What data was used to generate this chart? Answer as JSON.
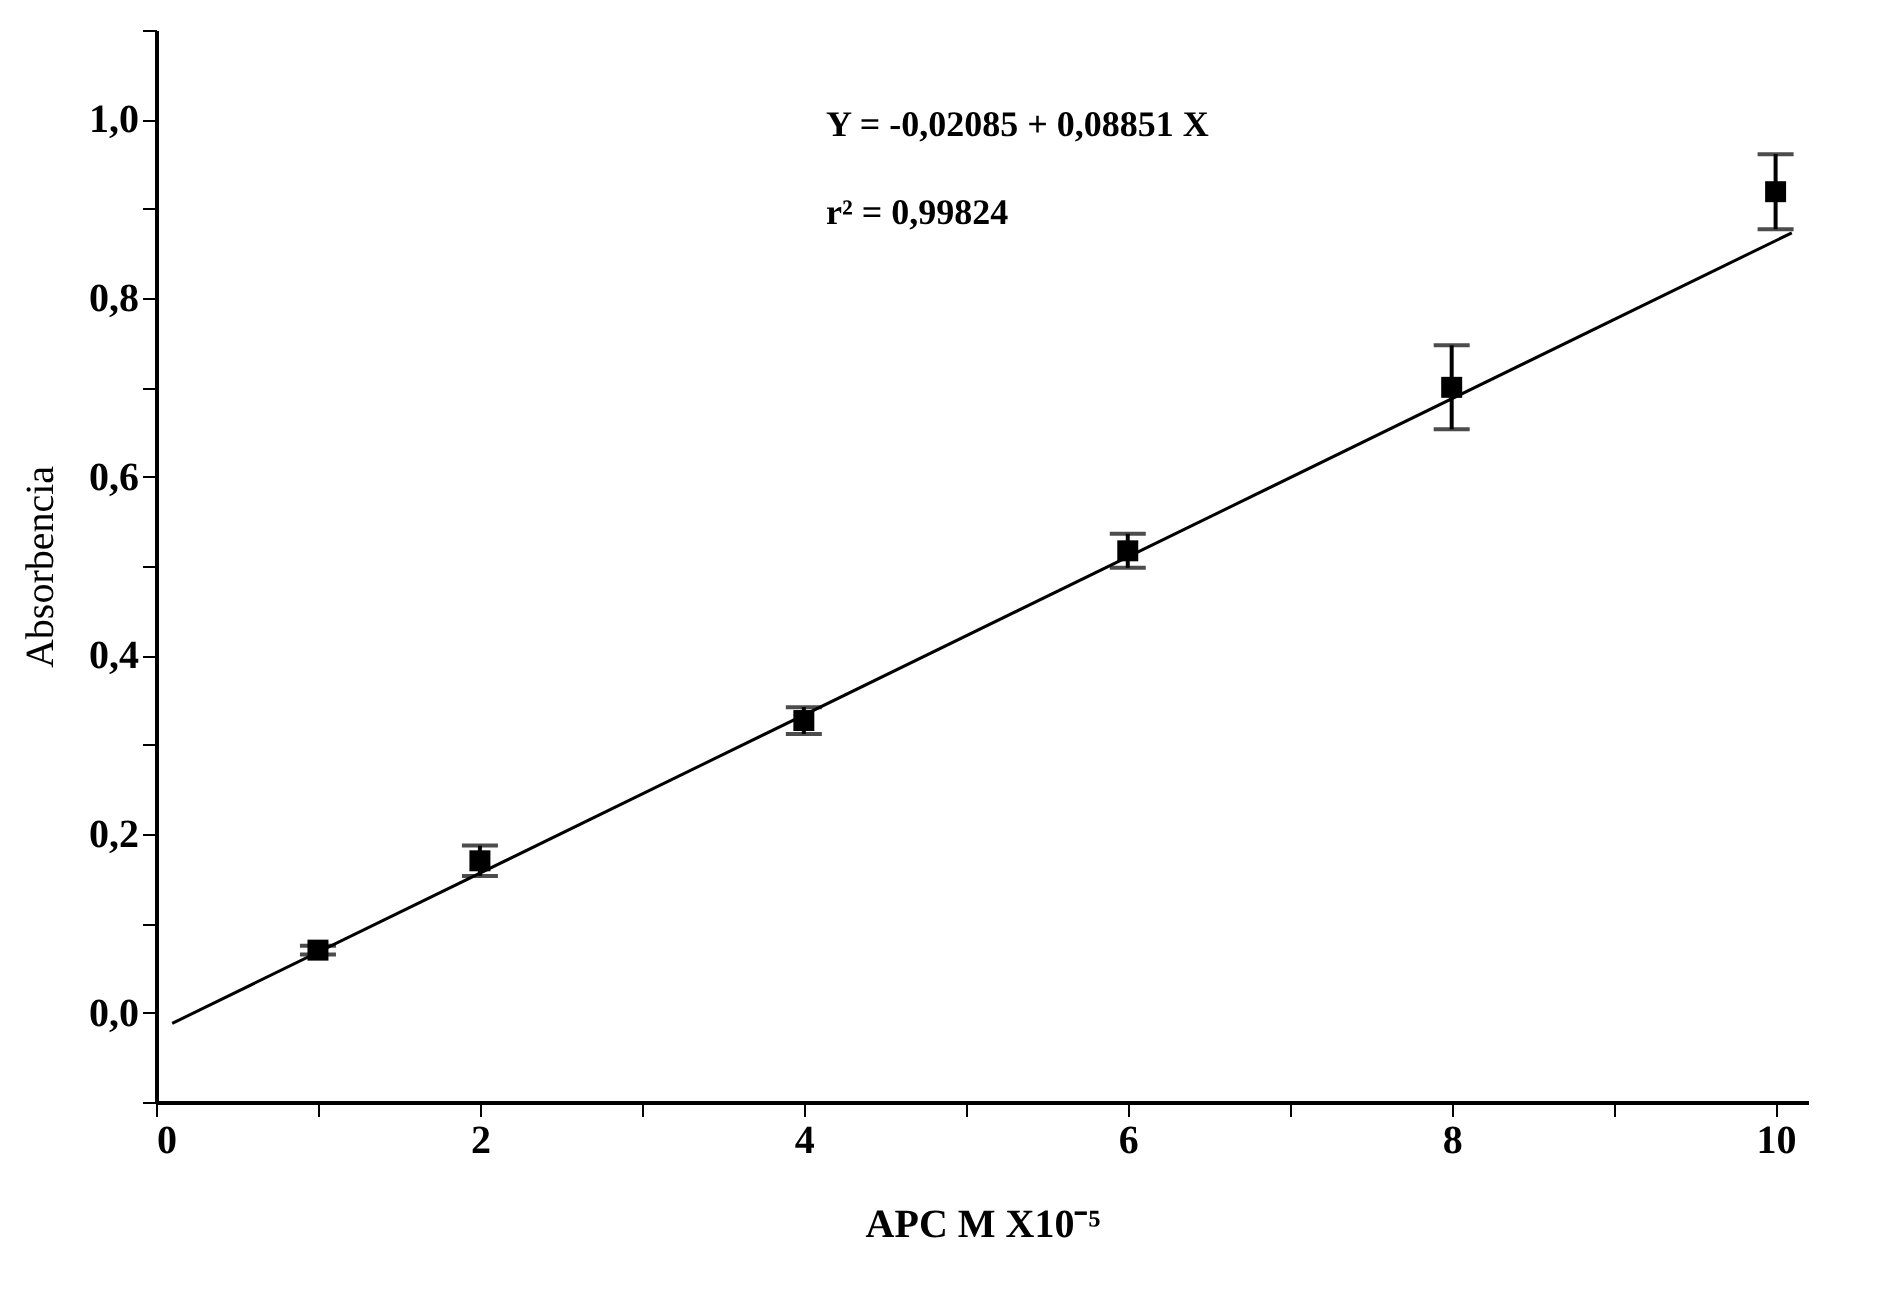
{
  "chart_data": {
    "type": "scatter",
    "xlabel": "APC M X10⁻⁵",
    "ylabel": "Absorbencia",
    "annotations": [
      "Y = -0,02085 + 0,08851 X",
      "r² = 0,99824"
    ],
    "x": [
      1,
      2,
      4,
      6,
      8,
      10
    ],
    "series": [
      {
        "color": "#000000",
        "marker": "square",
        "values": [
          0.07,
          0.17,
          0.327,
          0.517,
          0.7,
          0.919
        ],
        "errors": [
          0.005,
          0.017,
          0.015,
          0.019,
          0.047,
          0.042
        ]
      },
      {
        "type": "line",
        "color": "#000000",
        "line_style": "solid",
        "x": [
          0.1,
          10.1
        ],
        "values": [
          -0.012,
          0.873
        ]
      }
    ],
    "xlim": [
      0,
      10.2
    ],
    "xticks": [
      0,
      {
        "value": 1,
        "label": null
      },
      2,
      {
        "value": 3,
        "label": null
      },
      4,
      {
        "value": 5,
        "label": null
      },
      6,
      {
        "value": 7,
        "label": null
      },
      8,
      {
        "value": 9,
        "label": null
      },
      10
    ],
    "ylim": [
      -0.1,
      1.1
    ],
    "yticks": [
      {
        "value": -0.1,
        "label": null
      },
      {
        "value": 0,
        "label": "0,0"
      },
      {
        "value": 0.1,
        "label": null
      },
      {
        "value": 0.2,
        "label": "0,2"
      },
      {
        "value": 0.3,
        "label": null
      },
      {
        "value": 0.4,
        "label": "0,4"
      },
      {
        "value": 0.5,
        "label": null
      },
      {
        "value": 0.6,
        "label": "0,6"
      },
      {
        "value": 0.7,
        "label": null
      },
      {
        "value": 0.8,
        "label": "0,8"
      },
      {
        "value": 0.9,
        "label": null
      },
      {
        "value": 1.0,
        "label": "1,0"
      },
      {
        "value": 1.1,
        "label": null
      }
    ],
    "grid": false
  }
}
